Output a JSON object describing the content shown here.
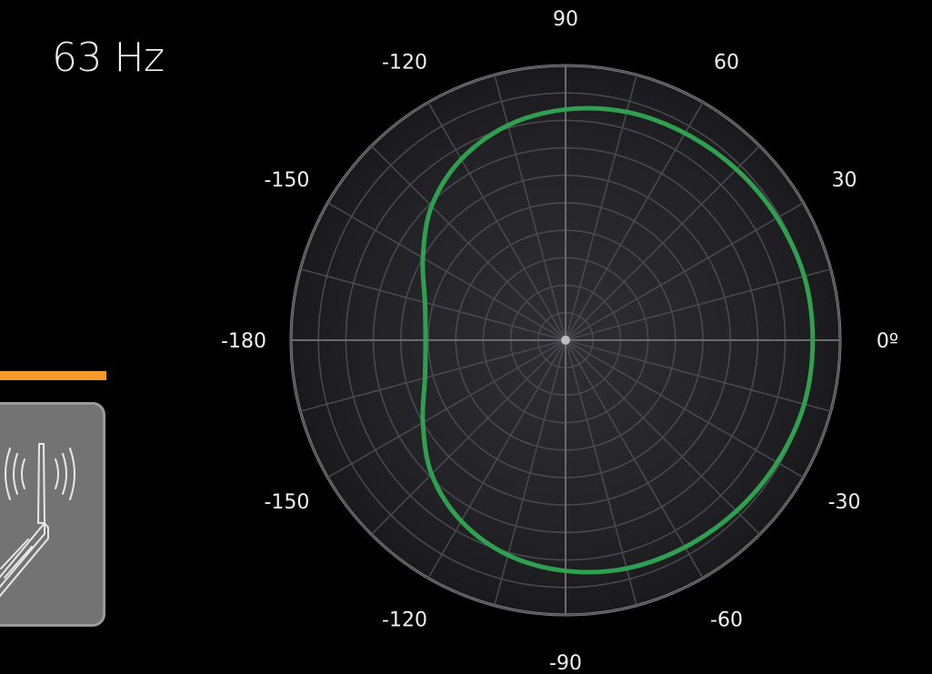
{
  "frequency_label": "63 Hz",
  "accent_color": "#f39a2b",
  "device_icon": "wireless-router-icon",
  "chart_data": {
    "type": "polar-line",
    "title": "63 Hz",
    "angle_unit": "degrees",
    "radial_rings": 10,
    "spokes_every_deg": 15,
    "grid": true,
    "angle_labels": [
      {
        "text": "90",
        "angle": 90
      },
      {
        "text": "60",
        "angle": 60
      },
      {
        "text": "30",
        "angle": 30
      },
      {
        "text": "0º",
        "angle": 0
      },
      {
        "text": "-30",
        "angle": -30
      },
      {
        "text": "-60",
        "angle": -60
      },
      {
        "text": "-90",
        "angle": -90
      },
      {
        "text": "-120",
        "angle": -120
      },
      {
        "text": "-150",
        "angle": -150
      },
      {
        "text": "-180",
        "angle": 180
      },
      {
        "text": "-150",
        "angle": 150
      },
      {
        "text": "-120",
        "angle": 120
      }
    ],
    "series": [
      {
        "color": "#2ea04f",
        "points": [
          {
            "angle": 0,
            "r": 0.9
          },
          {
            "angle": 15,
            "r": 0.9
          },
          {
            "angle": 30,
            "r": 0.89
          },
          {
            "angle": 45,
            "r": 0.88
          },
          {
            "angle": 60,
            "r": 0.87
          },
          {
            "angle": 75,
            "r": 0.86
          },
          {
            "angle": 90,
            "r": 0.84
          },
          {
            "angle": 105,
            "r": 0.81
          },
          {
            "angle": 120,
            "r": 0.76
          },
          {
            "angle": 135,
            "r": 0.69
          },
          {
            "angle": 150,
            "r": 0.6
          },
          {
            "angle": 165,
            "r": 0.53
          },
          {
            "angle": 180,
            "r": 0.51
          },
          {
            "angle": 195,
            "r": 0.53
          },
          {
            "angle": 210,
            "r": 0.6
          },
          {
            "angle": 225,
            "r": 0.69
          },
          {
            "angle": 240,
            "r": 0.76
          },
          {
            "angle": 255,
            "r": 0.81
          },
          {
            "angle": 270,
            "r": 0.84
          },
          {
            "angle": 285,
            "r": 0.86
          },
          {
            "angle": 300,
            "r": 0.87
          },
          {
            "angle": 315,
            "r": 0.88
          },
          {
            "angle": 330,
            "r": 0.89
          },
          {
            "angle": 345,
            "r": 0.9
          }
        ]
      }
    ]
  }
}
